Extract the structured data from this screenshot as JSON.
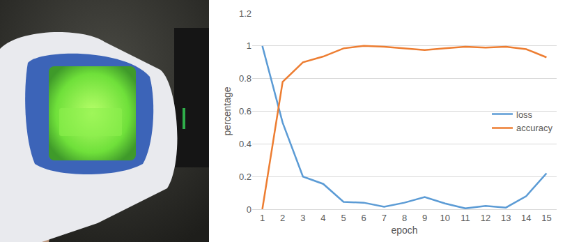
{
  "chart_data": {
    "type": "line",
    "categories": [
      "1",
      "2",
      "3",
      "4",
      "5",
      "6",
      "7",
      "8",
      "9",
      "10",
      "11",
      "12",
      "13",
      "14",
      "15"
    ],
    "series": [
      {
        "name": "loss",
        "color": "#5b9bd5",
        "values": [
          1.0,
          0.53,
          0.2,
          0.155,
          0.045,
          0.04,
          0.015,
          0.04,
          0.075,
          0.035,
          0.005,
          0.02,
          0.01,
          0.08,
          0.22
        ]
      },
      {
        "name": "accuracy",
        "color": "#ed7d31",
        "values": [
          0,
          0.78,
          0.9,
          0.935,
          0.985,
          1.0,
          0.995,
          0.985,
          0.975,
          0.985,
          0.995,
          0.99,
          0.995,
          0.98,
          0.93
        ]
      }
    ],
    "x_label": "epoch",
    "y_label": "percentage",
    "ylim": [
      0,
      1.2
    ],
    "yticks": [
      0,
      0.2,
      0.4,
      0.6,
      0.8,
      1,
      1.2
    ],
    "grid": true,
    "legend": "right"
  }
}
